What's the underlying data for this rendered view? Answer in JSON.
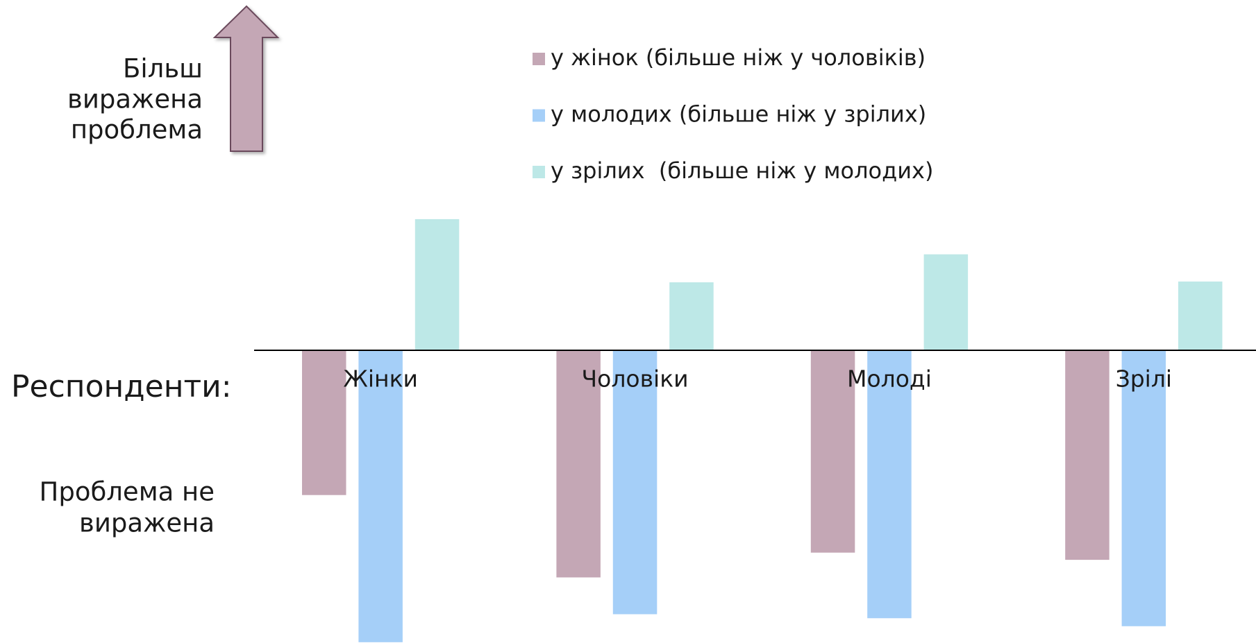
{
  "chart_data": {
    "type": "bar",
    "annotations": {
      "top": [
        "Більш",
        "виражена",
        "проблема"
      ],
      "respondents": "Респонденти:",
      "bottom": [
        "Проблема не",
        "виражена"
      ]
    },
    "categories": [
      "Жінки",
      "Чоловіки",
      "Молоді",
      "Зрілі"
    ],
    "series": [
      {
        "name": "у жінок (більше ніж у чоловіків)",
        "color": "#c4a7b5",
        "values": [
          -181,
          -284,
          -253,
          -262
        ]
      },
      {
        "name": "у молодих (більше ніж у зрілих)",
        "color": "#a5cff8",
        "values": [
          -365,
          -330,
          -335,
          -345
        ]
      },
      {
        "name": "у зрілих  (більше ніж у молодих)",
        "color": "#bde8e7",
        "values": [
          164,
          85,
          120,
          86
        ]
      }
    ],
    "ylim": [
      -366,
      438
    ]
  }
}
